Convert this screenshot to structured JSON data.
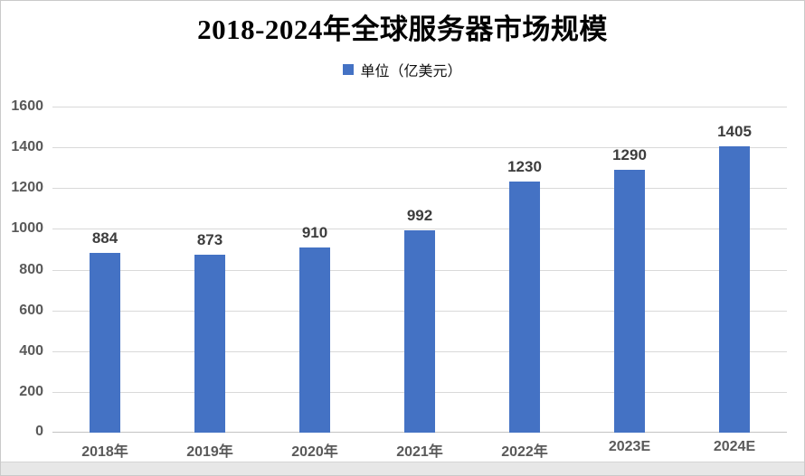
{
  "chart_data": {
    "type": "bar",
    "title": "2018-2024年全球服务器市场规模",
    "legend": "单位（亿美元）",
    "categories": [
      "2018年",
      "2019年",
      "2020年",
      "2021年",
      "2022年",
      "2023E",
      "2024E"
    ],
    "values": [
      884,
      873,
      910,
      992,
      1230,
      1290,
      1405
    ],
    "xlabel": "",
    "ylabel": "",
    "ylim": [
      0,
      1600
    ],
    "yticks": [
      0,
      200,
      400,
      600,
      800,
      1000,
      1200,
      1400,
      1600
    ],
    "grid": true,
    "legend_position": "top-center",
    "colors": {
      "bar": "#4472C4",
      "value_label": "#3d3d3d",
      "axis_label": "#595959",
      "gridline": "#d9d9d9",
      "axis_line": "#c3c3c3",
      "title": "#000000",
      "frame_border": "#cacaca",
      "footer_strip": "#e7e7e7"
    }
  }
}
